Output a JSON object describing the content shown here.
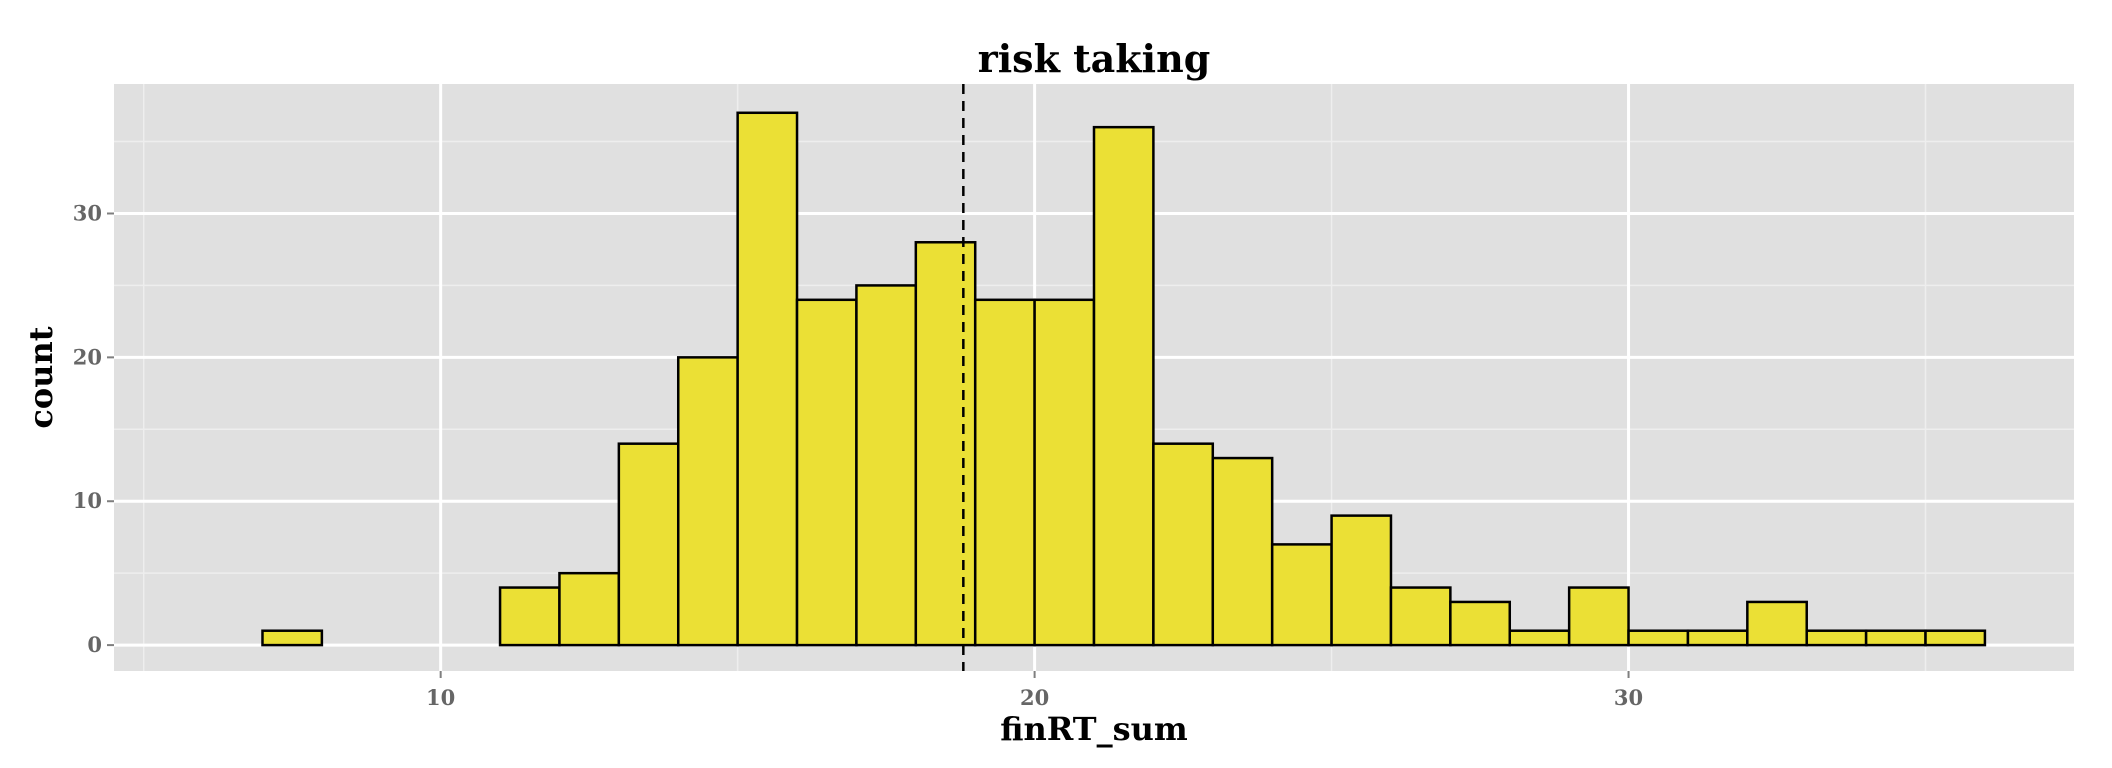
{
  "chart_data": {
    "type": "bar",
    "title": "risk taking",
    "xlabel": "finRT_sum",
    "ylabel": "count",
    "xlim": [
      4.5,
      37.5
    ],
    "ylim": [
      -1.8,
      39
    ],
    "xticks": [
      10,
      20,
      30
    ],
    "yticks": [
      0,
      10,
      20,
      30
    ],
    "bin_width": 1,
    "bins": [
      {
        "x0": 6,
        "x1": 7,
        "count": 0
      },
      {
        "x0": 7,
        "x1": 8,
        "count": 1
      },
      {
        "x0": 8,
        "x1": 9,
        "count": 0
      },
      {
        "x0": 9,
        "x1": 10,
        "count": 0
      },
      {
        "x0": 10,
        "x1": 11,
        "count": 0
      },
      {
        "x0": 11,
        "x1": 12,
        "count": 4
      },
      {
        "x0": 12,
        "x1": 13,
        "count": 5
      },
      {
        "x0": 13,
        "x1": 14,
        "count": 14
      },
      {
        "x0": 14,
        "x1": 15,
        "count": 20
      },
      {
        "x0": 15,
        "x1": 16,
        "count": 37
      },
      {
        "x0": 16,
        "x1": 17,
        "count": 24
      },
      {
        "x0": 17,
        "x1": 18,
        "count": 25
      },
      {
        "x0": 18,
        "x1": 19,
        "count": 28
      },
      {
        "x0": 19,
        "x1": 20,
        "count": 24
      },
      {
        "x0": 20,
        "x1": 21,
        "count": 24
      },
      {
        "x0": 21,
        "x1": 22,
        "count": 36
      },
      {
        "x0": 22,
        "x1": 23,
        "count": 14
      },
      {
        "x0": 23,
        "x1": 24,
        "count": 13
      },
      {
        "x0": 24,
        "x1": 25,
        "count": 7
      },
      {
        "x0": 25,
        "x1": 26,
        "count": 9
      },
      {
        "x0": 26,
        "x1": 27,
        "count": 4
      },
      {
        "x0": 27,
        "x1": 28,
        "count": 3
      },
      {
        "x0": 28,
        "x1": 29,
        "count": 1
      },
      {
        "x0": 29,
        "x1": 30,
        "count": 4
      },
      {
        "x0": 30,
        "x1": 31,
        "count": 1
      },
      {
        "x0": 31,
        "x1": 32,
        "count": 1
      },
      {
        "x0": 32,
        "x1": 33,
        "count": 3
      },
      {
        "x0": 33,
        "x1": 34,
        "count": 1
      },
      {
        "x0": 34,
        "x1": 35,
        "count": 1
      },
      {
        "x0": 35,
        "x1": 36,
        "count": 1
      }
    ],
    "mean_line": {
      "x": 18.8,
      "style": "dashed",
      "color": "#000000"
    },
    "grid": true,
    "legend": "none",
    "colors": {
      "bar_fill": "#ebe035",
      "bar_stroke": "#000000",
      "panel_background": "#e0e0e0",
      "grid_major": "#ffffff",
      "grid_minor": "#eeeeee",
      "tick_label": "#666666"
    }
  }
}
